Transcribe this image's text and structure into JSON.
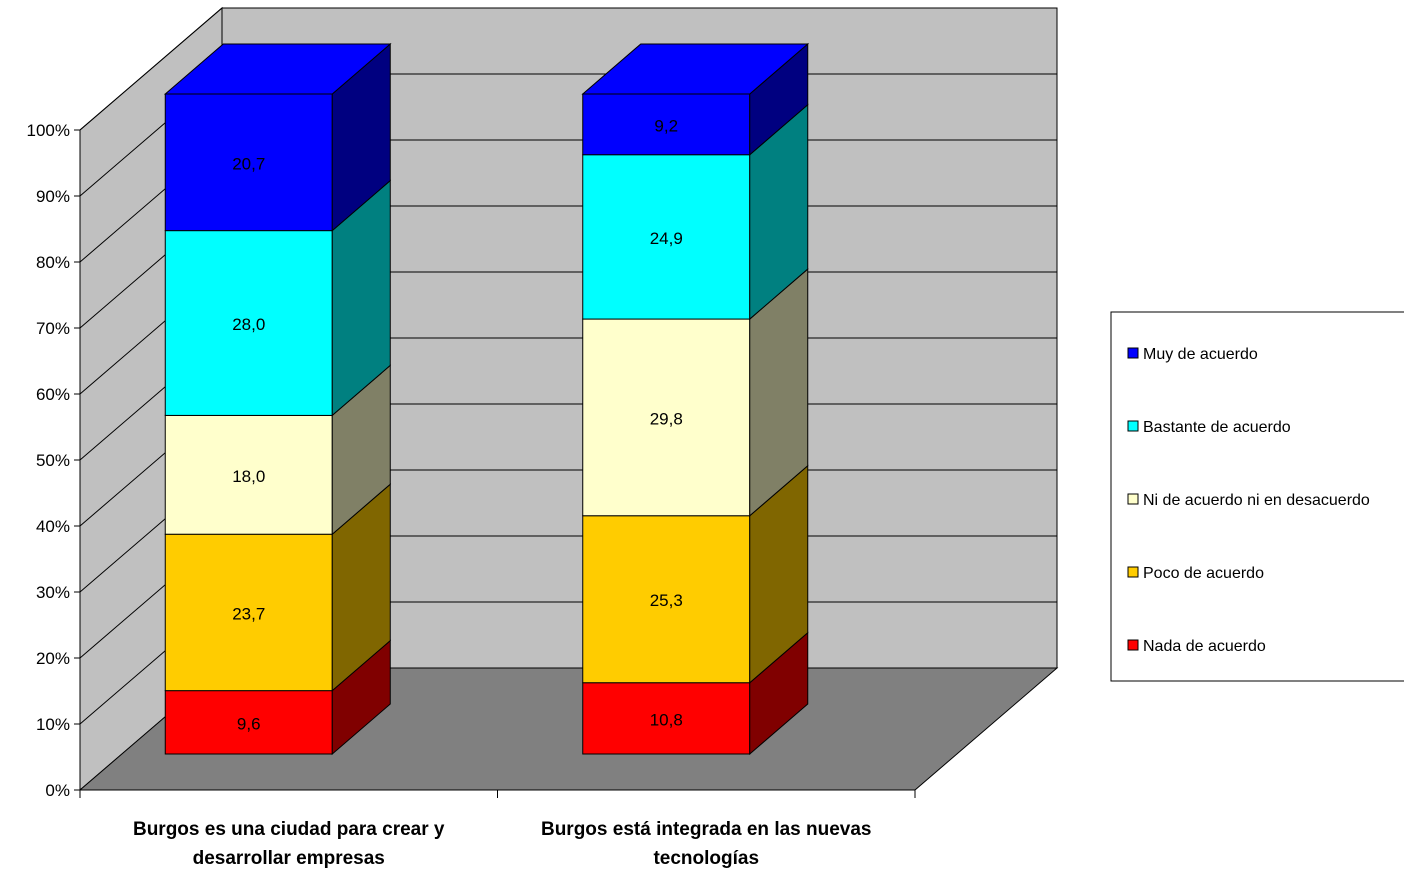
{
  "chart_data": {
    "type": "bar",
    "stacked": true,
    "percent_stacked": true,
    "three_d": true,
    "categories": [
      [
        "Burgos es una ciudad para crear y",
        "desarrollar empresas"
      ],
      [
        "Burgos está integrada en las nuevas",
        "tecnologías"
      ]
    ],
    "series": [
      {
        "name": "Nada de acuerdo",
        "color": "#ff0000",
        "values": [
          9.6,
          10.8
        ],
        "labels": [
          "9,6",
          "10,8"
        ]
      },
      {
        "name": "Poco de acuerdo",
        "color": "#ffcc00",
        "values": [
          23.7,
          25.3
        ],
        "labels": [
          "23,7",
          "25,3"
        ]
      },
      {
        "name": "Ni de acuerdo ni en desacuerdo",
        "color": "#ffffcc",
        "values": [
          18.0,
          29.8
        ],
        "labels": [
          "18,0",
          "29,8"
        ]
      },
      {
        "name": "Bastante de acuerdo",
        "color": "#00ffff",
        "values": [
          28.0,
          24.9
        ],
        "labels": [
          "28,0",
          "24,9"
        ]
      },
      {
        "name": "Muy de acuerdo",
        "color": "#0000ff",
        "values": [
          20.7,
          9.2
        ],
        "labels": [
          "20,7",
          "9,2"
        ]
      }
    ],
    "yticks": [
      "0%",
      "10%",
      "20%",
      "30%",
      "40%",
      "50%",
      "60%",
      "70%",
      "80%",
      "90%",
      "100%"
    ],
    "ylim": [
      0,
      100
    ],
    "grid": true,
    "legend_position": "right",
    "legend_order": [
      "Muy de acuerdo",
      "Bastante de acuerdo",
      "Ni de acuerdo ni en desacuerdo",
      "Poco de acuerdo",
      "Nada de acuerdo"
    ],
    "colors": {
      "wall": "#c0c0c0",
      "floor": "#808080"
    }
  }
}
